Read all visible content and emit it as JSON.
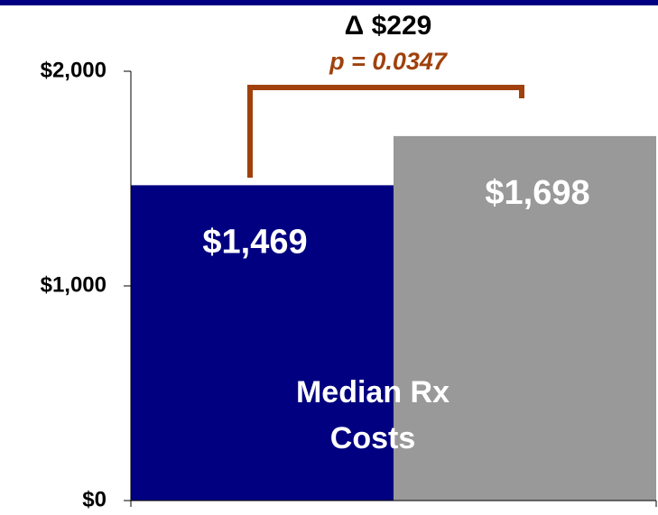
{
  "chart_data": {
    "type": "bar",
    "categories": [
      null,
      null
    ],
    "values": [
      1469,
      1698
    ],
    "value_labels": [
      "$1,469",
      "$1,698"
    ],
    "colors": [
      "#000080",
      "#999999"
    ],
    "ylim": [
      0,
      2000
    ],
    "yticks": [
      {
        "value": 0,
        "label": "$0"
      },
      {
        "value": 1000,
        "label": "$1,000"
      },
      {
        "value": 2000,
        "label": "$2,000"
      }
    ],
    "annotations": {
      "difference": "Δ $229",
      "p_value": "p = 0.0347",
      "bar_text": [
        "Median Rx",
        "Costs"
      ]
    }
  }
}
